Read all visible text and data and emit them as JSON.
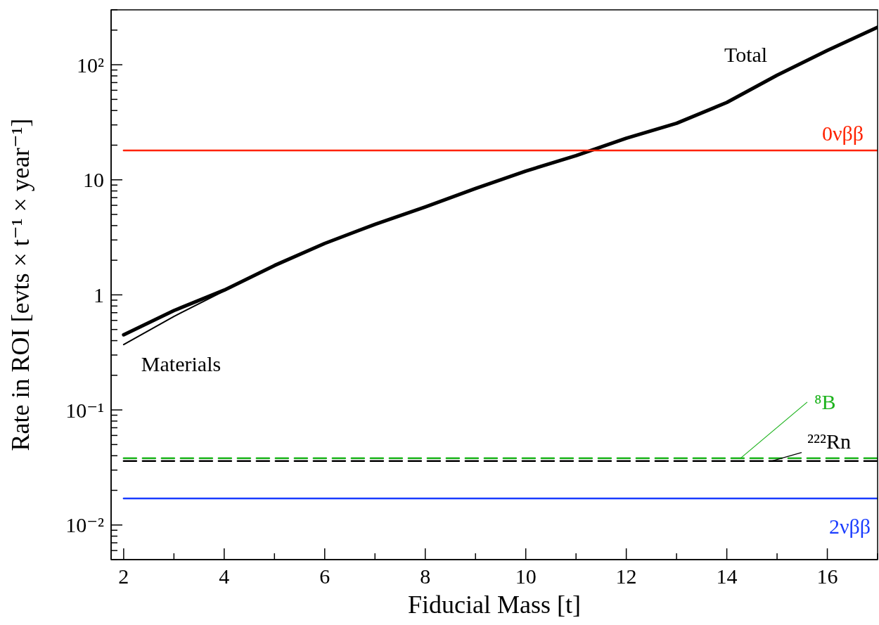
{
  "chart_data": {
    "type": "line",
    "xlabel": "Fiducial Mass [t]",
    "ylabel": "Rate in ROI [evts  × t⁻¹ × year⁻¹]",
    "log": "y",
    "marker": "none",
    "xlim": [
      1.75,
      17
    ],
    "xticks": [
      2,
      {
        "value": 3,
        "label": null
      },
      4,
      {
        "value": 5,
        "label": null
      },
      6,
      {
        "value": 7,
        "label": null
      },
      8,
      {
        "value": 9,
        "label": null
      },
      10,
      {
        "value": 11,
        "label": null
      },
      12,
      {
        "value": 13,
        "label": null
      },
      14,
      {
        "value": 15,
        "label": null
      },
      16,
      {
        "value": 17,
        "label": null
      }
    ],
    "ylim": [
      0.005,
      300
    ],
    "yticks": [
      {
        "value": 0.005,
        "label": null
      },
      {
        "value": 0.006,
        "label": null
      },
      {
        "value": 0.007,
        "label": null
      },
      {
        "value": 0.008,
        "label": null
      },
      {
        "value": 0.009,
        "label": null
      },
      {
        "value": 0.01,
        "label": "10⁻²"
      },
      {
        "value": 0.02,
        "label": null
      },
      {
        "value": 0.03,
        "label": null
      },
      {
        "value": 0.04,
        "label": null
      },
      {
        "value": 0.05,
        "label": null
      },
      {
        "value": 0.06,
        "label": null
      },
      {
        "value": 0.07,
        "label": null
      },
      {
        "value": 0.08,
        "label": null
      },
      {
        "value": 0.09,
        "label": null
      },
      {
        "value": 0.1,
        "label": "10⁻¹"
      },
      {
        "value": 0.2,
        "label": null
      },
      {
        "value": 0.3,
        "label": null
      },
      {
        "value": 0.4,
        "label": null
      },
      {
        "value": 0.5,
        "label": null
      },
      {
        "value": 0.6,
        "label": null
      },
      {
        "value": 0.7,
        "label": null
      },
      {
        "value": 0.8,
        "label": null
      },
      {
        "value": 0.9,
        "label": null
      },
      1,
      {
        "value": 2,
        "label": null
      },
      {
        "value": 3,
        "label": null
      },
      {
        "value": 4,
        "label": null
      },
      {
        "value": 5,
        "label": null
      },
      {
        "value": 6,
        "label": null
      },
      {
        "value": 7,
        "label": null
      },
      {
        "value": 8,
        "label": null
      },
      {
        "value": 9,
        "label": null
      },
      10,
      {
        "value": 20,
        "label": null
      },
      {
        "value": 30,
        "label": null
      },
      {
        "value": 40,
        "label": null
      },
      {
        "value": 50,
        "label": null
      },
      {
        "value": 60,
        "label": null
      },
      {
        "value": 70,
        "label": null
      },
      {
        "value": 80,
        "label": null
      },
      {
        "value": 90,
        "label": null
      },
      {
        "value": 100,
        "label": "10²"
      },
      {
        "value": 200,
        "label": null
      },
      {
        "value": 300,
        "label": null
      }
    ],
    "series": [
      {
        "name": "Total",
        "color": "#000000",
        "x": [
          2,
          3,
          4,
          5,
          6,
          7,
          8,
          9,
          10,
          11,
          12,
          13,
          14,
          15,
          16,
          17
        ],
        "values": [
          0.45,
          0.73,
          1.1,
          1.8,
          2.8,
          4.1,
          5.8,
          8.4,
          11.9,
          16.2,
          23,
          31,
          47,
          81,
          133,
          212
        ]
      },
      {
        "name": "Materials",
        "color": "#000000",
        "x": [
          2,
          3,
          4,
          5,
          6,
          7,
          8,
          9,
          10,
          11,
          12,
          13,
          14,
          15,
          16,
          17
        ],
        "values": [
          0.37,
          0.65,
          1.08,
          1.8,
          2.8,
          4.1,
          5.8,
          8.4,
          11.9,
          16.2,
          23,
          31,
          47,
          81,
          133,
          212
        ]
      },
      {
        "name": "0νββ",
        "color": "#ff2200",
        "x": [
          2,
          17
        ],
        "values": [
          18,
          18
        ]
      },
      {
        "name": "⁸B",
        "color": "#1db31d",
        "x": [
          2,
          17
        ],
        "values": [
          0.038,
          0.038
        ],
        "line_style": "dashed"
      },
      {
        "name": "²²²Rn",
        "color": "#000000",
        "x": [
          2,
          17
        ],
        "values": [
          0.036,
          0.036
        ],
        "line_style": "dashed"
      },
      {
        "name": "2νββ",
        "color": "#1a3cff",
        "x": [
          2,
          17
        ],
        "values": [
          0.017,
          0.017
        ]
      }
    ]
  }
}
